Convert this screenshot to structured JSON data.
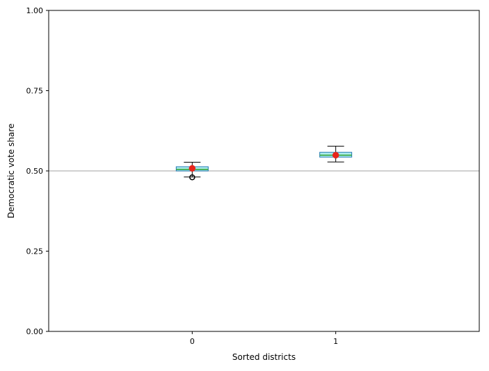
{
  "chart_data": {
    "type": "box",
    "title": "",
    "xlabel": "Sorted districts",
    "ylabel": "Democratic vote share",
    "categories": [
      "0",
      "1"
    ],
    "ylim": [
      0,
      1
    ],
    "yticks": [
      0,
      0.25,
      0.5,
      0.75,
      1.0
    ],
    "ytick_labels": [
      "0.00",
      "0.25",
      "0.50",
      "0.75",
      "1.00"
    ],
    "grid": false,
    "reference_line": 0.5,
    "boxes": [
      {
        "category": "0",
        "whisker_low": 0.481,
        "q1": 0.5,
        "median": 0.505,
        "q3": 0.513,
        "whisker_high": 0.527,
        "outliers": [
          0.48
        ],
        "marker": 0.508
      },
      {
        "category": "1",
        "whisker_low": 0.528,
        "q1": 0.543,
        "median": 0.549,
        "q3": 0.558,
        "whisker_high": 0.577,
        "outliers": [],
        "marker": 0.549
      }
    ],
    "colors": {
      "box_edge": "#1f77b4",
      "box_fill": "#aeeeee",
      "median": "#2ca02c",
      "whisker": "#000000",
      "marker": "#e8251b",
      "reference_line": "#c0c0c0"
    }
  }
}
